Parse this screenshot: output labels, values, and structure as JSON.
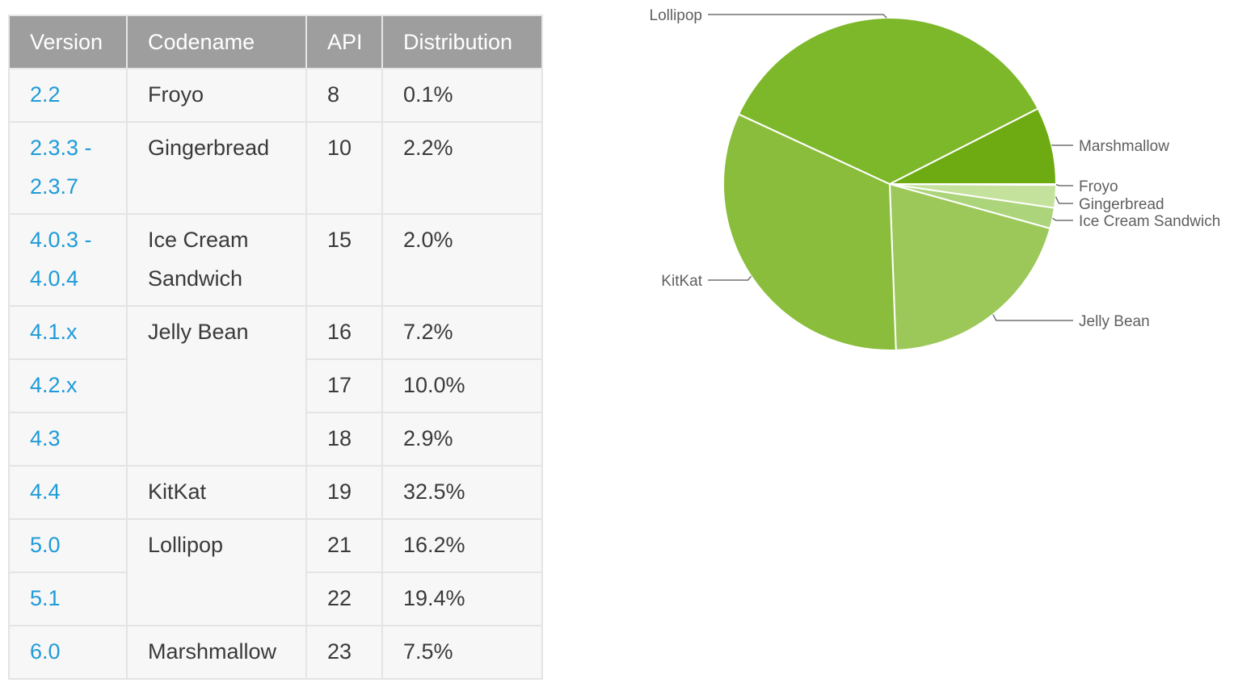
{
  "table": {
    "headers": [
      "Version",
      "Codename",
      "API",
      "Distribution"
    ],
    "rows": [
      {
        "version": [
          "2.2"
        ],
        "codename": [
          "Froyo"
        ],
        "codename_rowspan": 1,
        "api": "8",
        "distribution": "0.1%"
      },
      {
        "version": [
          "2.3.3 -",
          "2.3.7"
        ],
        "codename": [
          "Gingerbread"
        ],
        "codename_rowspan": 1,
        "api": "10",
        "distribution": "2.2%"
      },
      {
        "version": [
          "4.0.3 -",
          "4.0.4"
        ],
        "codename": [
          "Ice Cream",
          "Sandwich"
        ],
        "codename_rowspan": 1,
        "api": "15",
        "distribution": "2.0%"
      },
      {
        "version": [
          "4.1.x"
        ],
        "codename": [
          "Jelly Bean"
        ],
        "codename_rowspan": 3,
        "api": "16",
        "distribution": "7.2%"
      },
      {
        "version": [
          "4.2.x"
        ],
        "codename": null,
        "api": "17",
        "distribution": "10.0%"
      },
      {
        "version": [
          "4.3"
        ],
        "codename": null,
        "api": "18",
        "distribution": "2.9%"
      },
      {
        "version": [
          "4.4"
        ],
        "codename": [
          "KitKat"
        ],
        "codename_rowspan": 1,
        "api": "19",
        "distribution": "32.5%"
      },
      {
        "version": [
          "5.0"
        ],
        "codename": [
          "Lollipop"
        ],
        "codename_rowspan": 2,
        "api": "21",
        "distribution": "16.2%"
      },
      {
        "version": [
          "5.1"
        ],
        "codename": null,
        "api": "22",
        "distribution": "19.4%"
      },
      {
        "version": [
          "6.0"
        ],
        "codename": [
          "Marshmallow"
        ],
        "codename_rowspan": 1,
        "api": "23",
        "distribution": "7.5%"
      }
    ]
  },
  "chart_data": {
    "type": "pie",
    "slices": [
      {
        "label": "Froyo",
        "value": 0.1,
        "color": "#e6f2d2"
      },
      {
        "label": "Gingerbread",
        "value": 2.2,
        "color": "#c5e29c"
      },
      {
        "label": "Ice Cream Sandwich",
        "value": 2.0,
        "color": "#acd47a"
      },
      {
        "label": "Jelly Bean",
        "value": 20.1,
        "color": "#9cc85a"
      },
      {
        "label": "KitKat",
        "value": 32.5,
        "color": "#8bbd3c"
      },
      {
        "label": "Lollipop",
        "value": 35.6,
        "color": "#7db82b"
      },
      {
        "label": "Marshmallow",
        "value": 7.5,
        "color": "#6eab12"
      }
    ],
    "legend": "callout-labels"
  }
}
